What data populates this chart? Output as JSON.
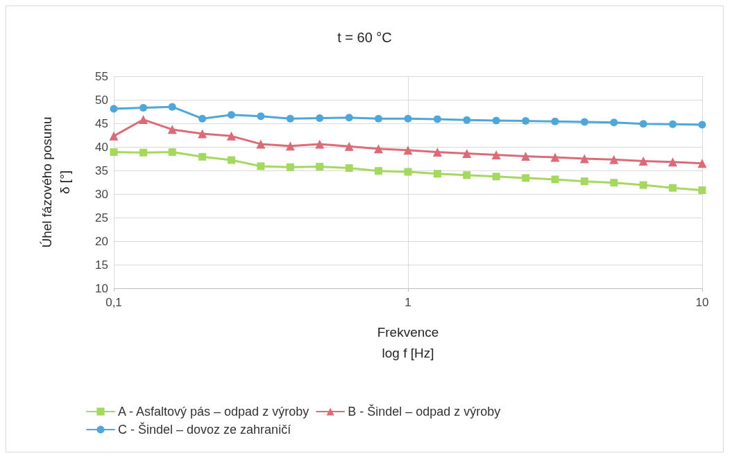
{
  "chart_data": {
    "type": "line",
    "title": "t = 60 °C",
    "xlabel": "Frekvence\nlog f [Hz]",
    "ylabel": "Úhel fázového posunu\nδ [°]",
    "log": "x",
    "xlim": [
      0.1,
      10
    ],
    "xticks": [
      {
        "value": 0.1,
        "label": "0,1"
      },
      1,
      10
    ],
    "ylim": [
      10,
      55
    ],
    "yticks": [
      10,
      15,
      20,
      25,
      30,
      35,
      40,
      45,
      50,
      55
    ],
    "grid": true,
    "legend": "bottom",
    "line_style": "solid",
    "x": [
      0.1,
      0.126,
      0.158,
      0.2,
      0.251,
      0.316,
      0.398,
      0.501,
      0.631,
      0.794,
      1,
      1.259,
      1.585,
      1.995,
      2.512,
      3.162,
      3.981,
      5.012,
      6.31,
      7.943,
      10
    ],
    "series": [
      {
        "name": "A - Asfaltový pás – odpad z výroby",
        "color": "#a5d85f",
        "marker": "square",
        "values": [
          38.9,
          38.8,
          38.9,
          37.9,
          37.2,
          35.9,
          35.7,
          35.8,
          35.5,
          34.9,
          34.7,
          34.3,
          34.0,
          33.7,
          33.4,
          33.1,
          32.7,
          32.4,
          31.9,
          31.3,
          30.8
        ]
      },
      {
        "name": "B - Šindel – odpad z výroby",
        "color": "#dc6b78",
        "marker": "triangle",
        "values": [
          42.3,
          45.8,
          43.7,
          42.8,
          42.3,
          40.6,
          40.2,
          40.6,
          40.1,
          39.6,
          39.3,
          38.9,
          38.6,
          38.3,
          38.0,
          37.8,
          37.5,
          37.3,
          37.0,
          36.8,
          36.5
        ]
      },
      {
        "name": "C - Šindel – dovoz ze zahraničí",
        "color": "#4ea6d9",
        "marker": "circle",
        "values": [
          48.1,
          48.3,
          48.5,
          46.0,
          46.8,
          46.5,
          46.0,
          46.1,
          46.2,
          46.0,
          46.0,
          45.9,
          45.7,
          45.6,
          45.5,
          45.4,
          45.3,
          45.2,
          44.9,
          44.8,
          44.7
        ]
      }
    ]
  }
}
